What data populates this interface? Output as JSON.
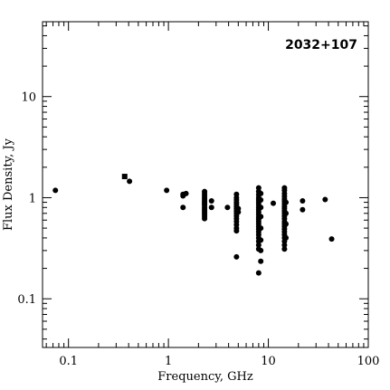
{
  "chart_data": {
    "type": "scatter",
    "title": "2032+107",
    "xlabel": "Frequency, GHz",
    "ylabel": "Flux Density, Jy",
    "xscale": "log",
    "yscale": "log",
    "xlim": [
      0.055,
      100
    ],
    "ylim": [
      0.033,
      55
    ],
    "x_ticks": [
      {
        "value": 0.1,
        "label": "0.1"
      },
      {
        "value": 1,
        "label": "1"
      },
      {
        "value": 10,
        "label": "10"
      },
      {
        "value": 100,
        "label": "100"
      }
    ],
    "y_ticks": [
      {
        "value": 0.1,
        "label": "0.1"
      },
      {
        "value": 1,
        "label": "1"
      },
      {
        "value": 10,
        "label": "10"
      }
    ],
    "series": [
      {
        "marker": "circle",
        "points": [
          [
            0.074,
            1.18
          ],
          [
            0.408,
            1.45
          ],
          [
            0.96,
            1.18
          ],
          [
            1.4,
            1.08
          ],
          [
            1.4,
            1.04
          ],
          [
            1.4,
            0.8
          ],
          [
            1.5,
            1.1
          ],
          [
            2.3,
            1.15
          ],
          [
            2.3,
            1.1
          ],
          [
            2.3,
            1.05
          ],
          [
            2.3,
            1.0
          ],
          [
            2.3,
            0.97
          ],
          [
            2.3,
            0.93
          ],
          [
            2.3,
            0.9
          ],
          [
            2.3,
            0.87
          ],
          [
            2.3,
            0.84
          ],
          [
            2.3,
            0.8
          ],
          [
            2.3,
            0.77
          ],
          [
            2.3,
            0.74
          ],
          [
            2.3,
            0.71
          ],
          [
            2.3,
            0.68
          ],
          [
            2.3,
            0.65
          ],
          [
            2.3,
            0.62
          ],
          [
            2.7,
            0.93
          ],
          [
            2.7,
            0.8
          ],
          [
            3.9,
            0.8
          ],
          [
            4.8,
            1.08
          ],
          [
            4.8,
            1.0
          ],
          [
            4.8,
            0.95
          ],
          [
            4.8,
            0.9
          ],
          [
            4.8,
            0.86
          ],
          [
            4.8,
            0.82
          ],
          [
            4.8,
            0.78
          ],
          [
            4.8,
            0.74
          ],
          [
            4.8,
            0.7
          ],
          [
            4.8,
            0.66
          ],
          [
            4.8,
            0.62
          ],
          [
            4.8,
            0.58
          ],
          [
            4.8,
            0.54
          ],
          [
            4.8,
            0.5
          ],
          [
            4.8,
            0.47
          ],
          [
            4.8,
            0.26
          ],
          [
            5.0,
            0.78
          ],
          [
            5.0,
            0.72
          ],
          [
            8.0,
            1.25
          ],
          [
            8.0,
            1.15
          ],
          [
            8.0,
            1.07
          ],
          [
            8.0,
            1.0
          ],
          [
            8.0,
            0.95
          ],
          [
            8.0,
            0.9
          ],
          [
            8.0,
            0.85
          ],
          [
            8.0,
            0.8
          ],
          [
            8.0,
            0.76
          ],
          [
            8.0,
            0.72
          ],
          [
            8.0,
            0.68
          ],
          [
            8.0,
            0.64
          ],
          [
            8.0,
            0.61
          ],
          [
            8.0,
            0.58
          ],
          [
            8.0,
            0.55
          ],
          [
            8.0,
            0.52
          ],
          [
            8.0,
            0.49
          ],
          [
            8.0,
            0.46
          ],
          [
            8.0,
            0.43
          ],
          [
            8.0,
            0.4
          ],
          [
            8.0,
            0.37
          ],
          [
            8.0,
            0.34
          ],
          [
            8.0,
            0.31
          ],
          [
            8.0,
            0.18
          ],
          [
            8.4,
            1.1
          ],
          [
            8.4,
            0.95
          ],
          [
            8.4,
            0.8
          ],
          [
            8.4,
            0.65
          ],
          [
            8.4,
            0.5
          ],
          [
            8.4,
            0.38
          ],
          [
            8.4,
            0.3
          ],
          [
            8.4,
            0.235
          ],
          [
            11.2,
            0.88
          ],
          [
            14.5,
            1.25
          ],
          [
            14.5,
            1.18
          ],
          [
            14.5,
            1.1
          ],
          [
            14.5,
            1.03
          ],
          [
            14.5,
            0.97
          ],
          [
            14.5,
            0.92
          ],
          [
            14.5,
            0.87
          ],
          [
            14.5,
            0.82
          ],
          [
            14.5,
            0.78
          ],
          [
            14.5,
            0.74
          ],
          [
            14.5,
            0.7
          ],
          [
            14.5,
            0.66
          ],
          [
            14.5,
            0.62
          ],
          [
            14.5,
            0.58
          ],
          [
            14.5,
            0.55
          ],
          [
            14.5,
            0.52
          ],
          [
            14.5,
            0.49
          ],
          [
            14.5,
            0.46
          ],
          [
            14.5,
            0.43
          ],
          [
            14.5,
            0.4
          ],
          [
            14.5,
            0.37
          ],
          [
            14.5,
            0.34
          ],
          [
            14.5,
            0.31
          ],
          [
            15.0,
            0.9
          ],
          [
            15.0,
            0.7
          ],
          [
            15.0,
            0.55
          ],
          [
            15.0,
            0.4
          ],
          [
            22.0,
            0.93
          ],
          [
            22.0,
            0.76
          ],
          [
            37.0,
            0.96
          ],
          [
            43.0,
            0.39
          ]
        ]
      },
      {
        "marker": "square",
        "points": [
          [
            0.365,
            1.62
          ]
        ]
      }
    ]
  }
}
